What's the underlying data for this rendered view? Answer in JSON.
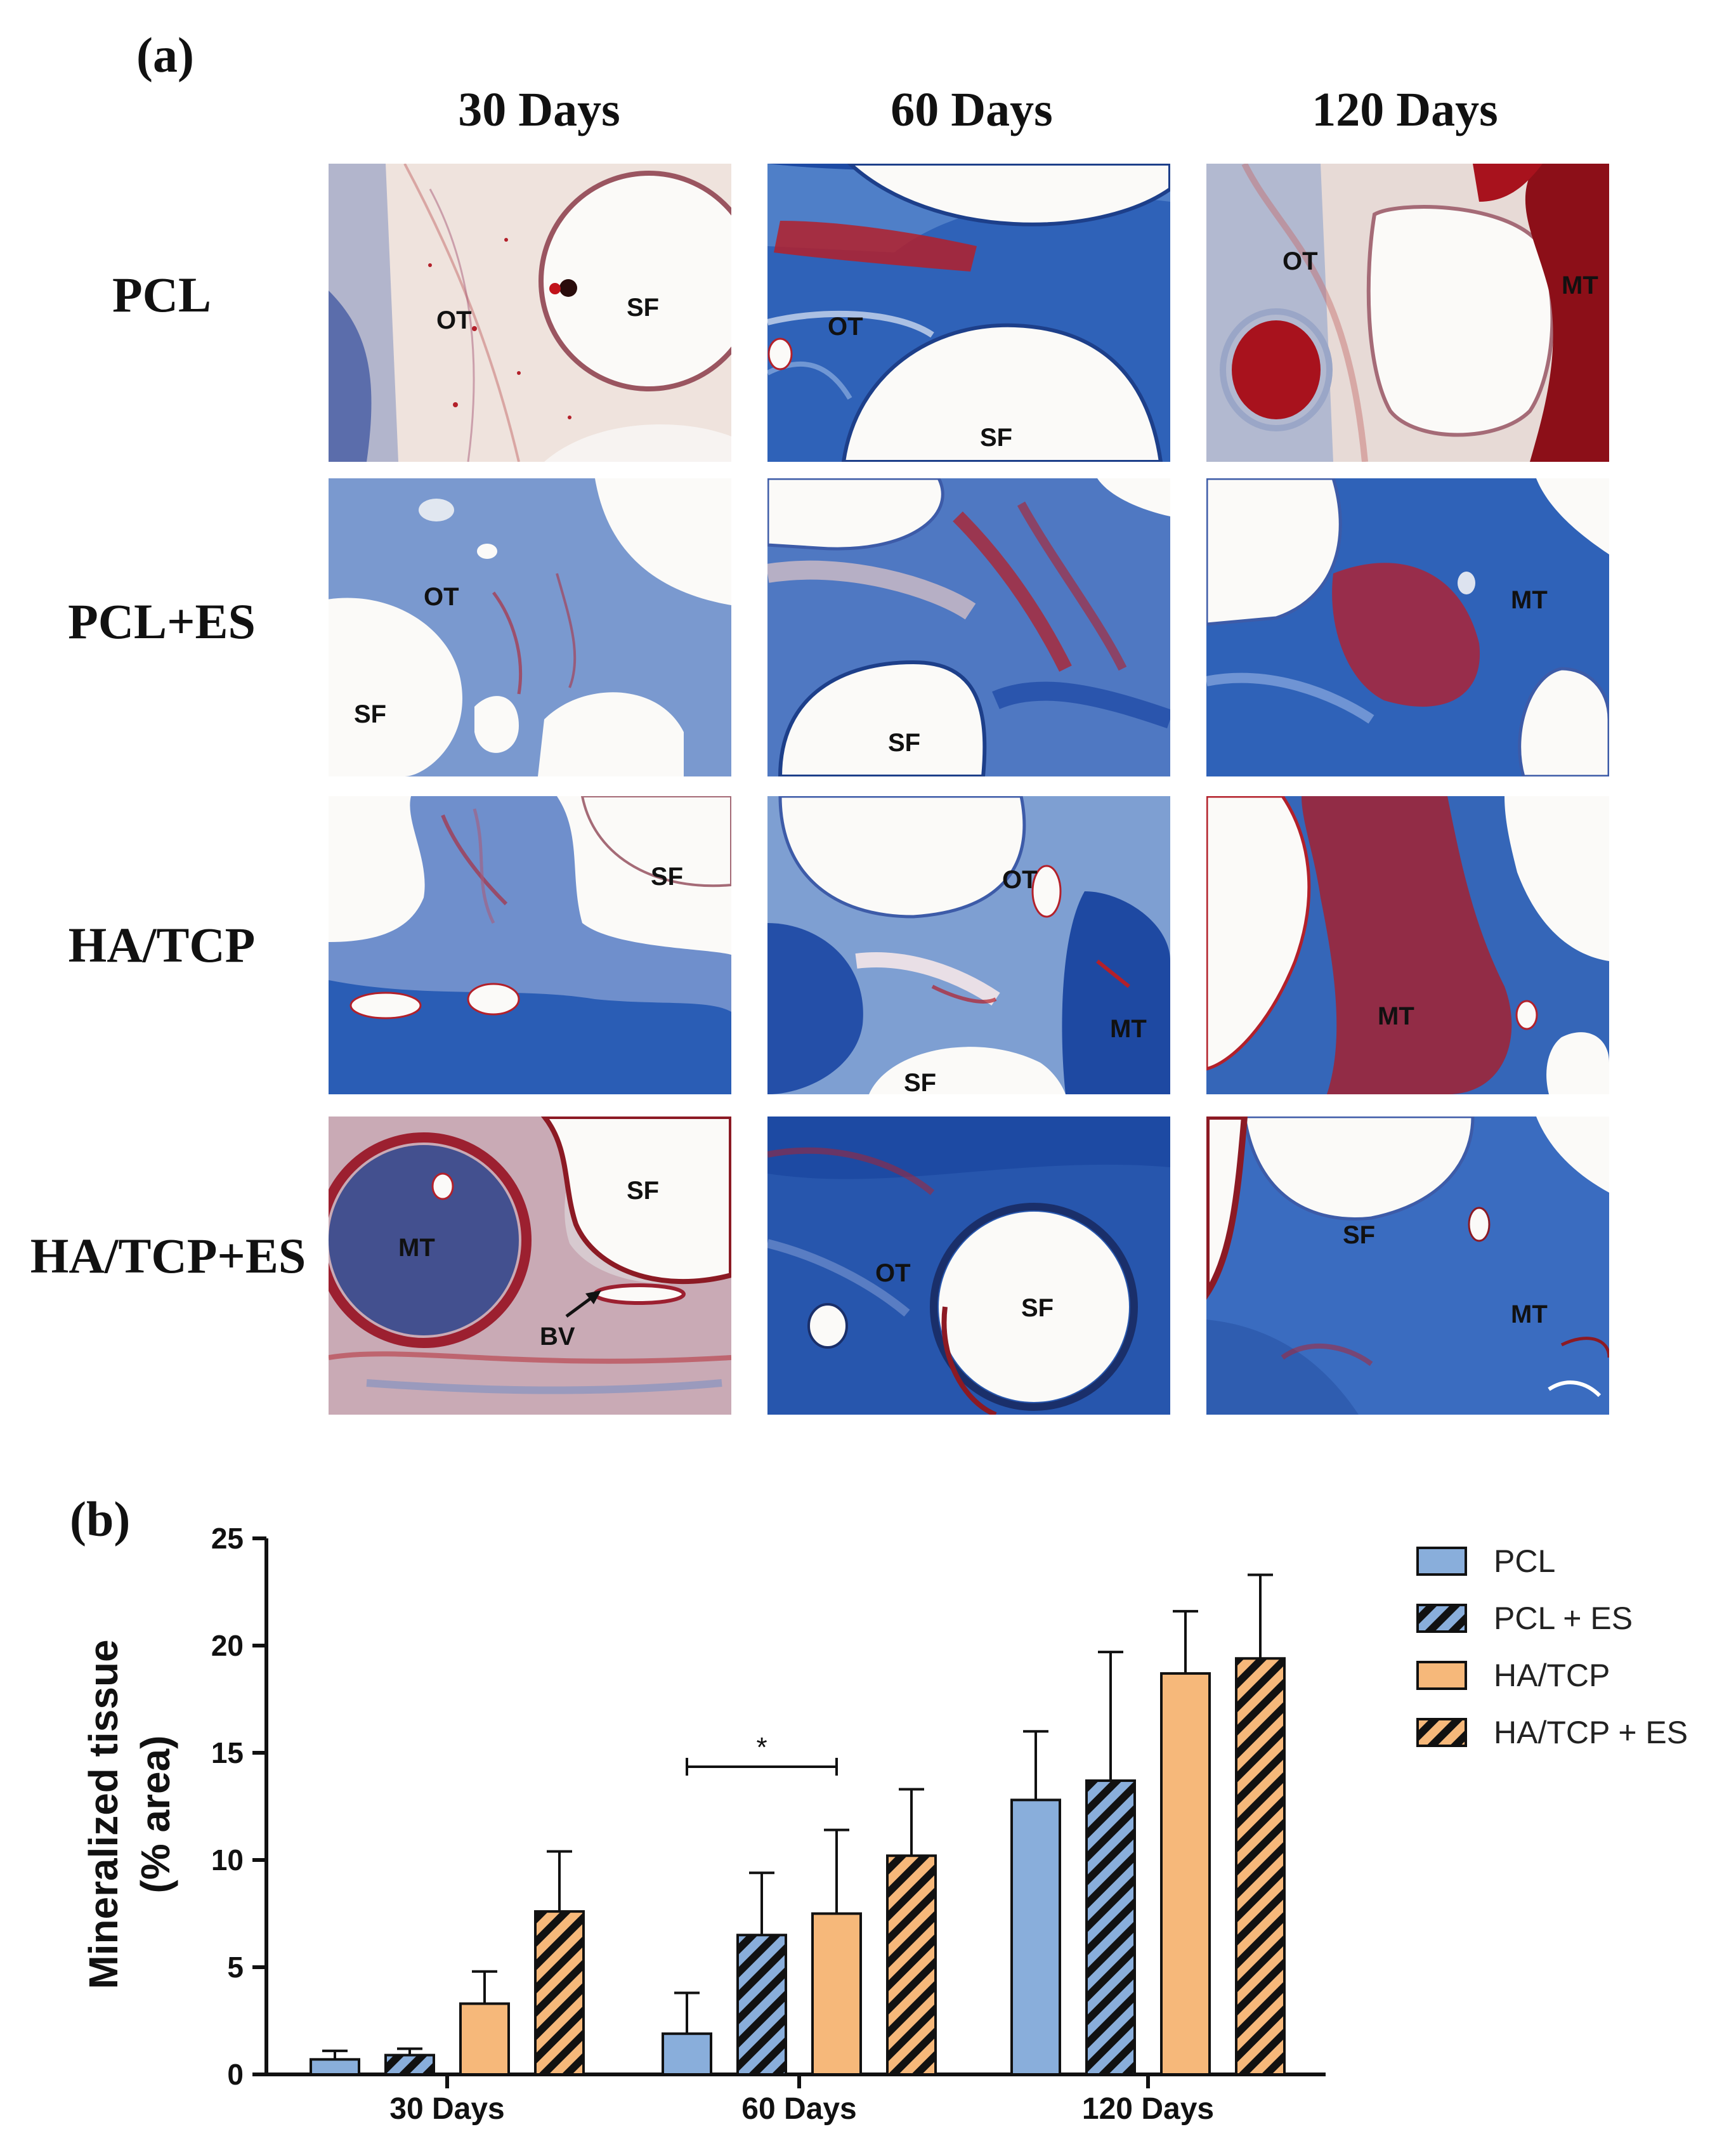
{
  "panel_a": {
    "letter": "(a)",
    "columns": [
      "30 Days",
      "60 Days",
      "120 Days"
    ],
    "rows": [
      "PCL",
      "PCL+ES",
      "HA/TCP",
      "HA/TCP+ES"
    ],
    "labels": [
      [
        [
          "OT",
          "SF"
        ],
        [
          "OT",
          "SF"
        ],
        [
          "OT",
          "MT"
        ]
      ],
      [
        [
          "OT",
          "SF"
        ],
        [
          "SF"
        ],
        [
          "MT"
        ]
      ],
      [
        [
          "SF"
        ],
        [
          "OT",
          "MT",
          "SF"
        ],
        [
          "MT"
        ]
      ],
      [
        [
          "SF",
          "MT",
          "BV"
        ],
        [
          "OT",
          "SF"
        ],
        [
          "SF",
          "MT"
        ]
      ]
    ]
  },
  "panel_b": {
    "letter": "(b)"
  },
  "colors": {
    "stain_blue": "#2f62b8",
    "stain_red": "#b3202a",
    "pcl": "#89aedb",
    "hatcp": "#f6b87a",
    "hatch": "#111111"
  },
  "chart_data": {
    "type": "bar",
    "categories": [
      "30 Days",
      "60 Days",
      "120 Days"
    ],
    "ylabel": "Mineralized tissue\n(% area)",
    "ylim": [
      0,
      25
    ],
    "yticks": [
      0,
      5,
      10,
      15,
      20,
      25
    ],
    "legend": "right",
    "series": [
      {
        "name": "PCL",
        "values": [
          0.7,
          1.9,
          12.8
        ],
        "errors": [
          0.4,
          1.9,
          3.2
        ],
        "color": "#89aedb",
        "hatched": false
      },
      {
        "name": "PCL + ES",
        "values": [
          0.9,
          6.5,
          13.7
        ],
        "errors": [
          0.3,
          2.9,
          6.0
        ],
        "color": "#89aedb",
        "hatched": true
      },
      {
        "name": "HA/TCP",
        "values": [
          3.3,
          7.5,
          18.7
        ],
        "errors": [
          1.5,
          3.9,
          2.9
        ],
        "color": "#f6b87a",
        "hatched": false
      },
      {
        "name": "HA/TCP + ES",
        "values": [
          7.6,
          10.2,
          19.4
        ],
        "errors": [
          2.8,
          3.1,
          3.9
        ],
        "color": "#f6b87a",
        "hatched": true
      }
    ],
    "annotations": [
      {
        "text": "*",
        "between": [
          "60 Days / PCL",
          "60 Days / HA/TCP"
        ]
      }
    ]
  }
}
